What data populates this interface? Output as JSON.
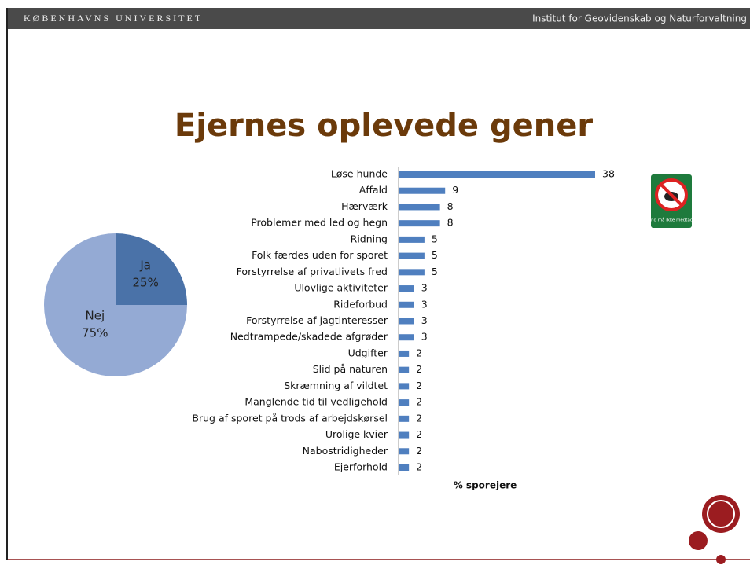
{
  "header": {
    "left": "KØBENHAVNS UNIVERSITET",
    "right": "Institut for Geovidenskab og Naturforvaltning"
  },
  "title": "Ejernes oplevede gener",
  "sign": "Hund må ikke medtages",
  "chart_data": [
    {
      "type": "pie",
      "categories": [
        "Ja",
        "Nej"
      ],
      "values": [
        25,
        75
      ],
      "value_labels": [
        "25%",
        "75%"
      ],
      "colors": [
        "#4a72a8",
        "#94aad4"
      ]
    },
    {
      "type": "hbar",
      "xlabel": "% sporejere",
      "color": "#4f7fbf",
      "categories": [
        "Løse hunde",
        "Affald",
        "Hærværk",
        "Problemer med led og hegn",
        "Ridning",
        "Folk færdes uden for sporet",
        "Forstyrrelse af privatlivets fred",
        "Ulovlige aktiviteter",
        "Rideforbud",
        "Forstyrrelse af jagtinteresser",
        "Nedtrampede/skadede afgrøder",
        "Udgifter",
        "Slid på naturen",
        "Skræmning af vildtet",
        "Manglende tid til vedligehold",
        "Brug af sporet på trods af arbejdskørsel",
        "Urolige kvier",
        "Nabostridigheder",
        "Ejerforhold"
      ],
      "values": [
        38,
        9,
        8,
        8,
        5,
        5,
        5,
        3,
        3,
        3,
        3,
        2,
        2,
        2,
        2,
        2,
        2,
        2,
        2
      ]
    }
  ]
}
